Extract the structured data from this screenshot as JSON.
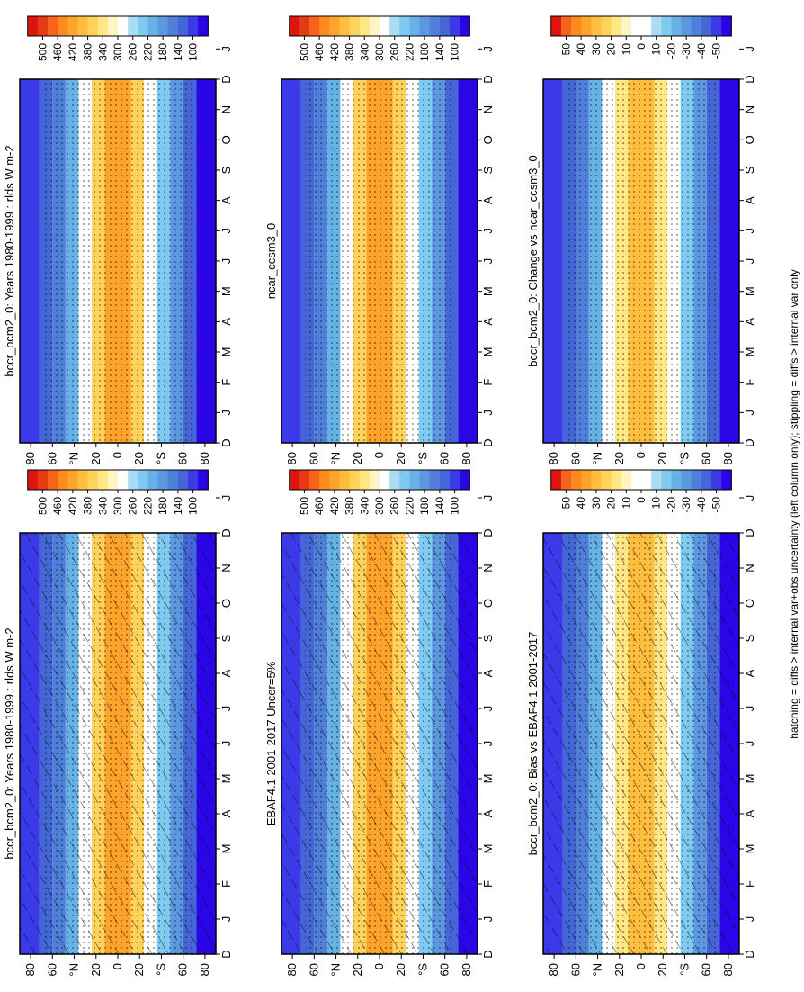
{
  "figure": {
    "caption": "hatching = diffs > internal var+obs uncertainty (left column only); stippling = diffs > internal var only",
    "variable": "rlds",
    "units": "W m-2"
  },
  "colors": {
    "abs": [
      "#2a06e6",
      "#3a3ae8",
      "#4466d6",
      "#4f7fd8",
      "#5b98df",
      "#66b1e6",
      "#7ecaf0",
      "#aadcf5",
      "#ffffff",
      "#fff5c2",
      "#ffe785",
      "#ffd25c",
      "#ffbe3d",
      "#ffa42a",
      "#ff8a20",
      "#f8631c",
      "#e63a14",
      "#e0140f"
    ],
    "diff": [
      "#2a06e6",
      "#3a3ae8",
      "#4466d6",
      "#4f7fd8",
      "#5b98df",
      "#66b1e6",
      "#7ecaf0",
      "#aadcf5",
      "#ffffff",
      "#ffffff",
      "#fff5c2",
      "#ffe785",
      "#ffd25c",
      "#ffbe3d",
      "#ffa42a",
      "#ff8a20",
      "#f8631c",
      "#e0140f"
    ]
  },
  "chart_data": [
    {
      "id": "p1",
      "type": "heatmap",
      "title": "bccr_bcm2_0: Years 1980-1999 : rlds W m-2",
      "x_ticks": [
        "D",
        "J",
        "F",
        "M",
        "A",
        "M",
        "J",
        "J",
        "A",
        "S",
        "O",
        "N",
        "D",
        "J"
      ],
      "y_ticks": [
        "80",
        "60",
        "°N",
        "20",
        "0",
        "20",
        "°S",
        "60",
        "80"
      ],
      "ylim": [
        -90,
        90
      ],
      "colorbar_labels": [
        "500",
        "460",
        "420",
        "380",
        "340",
        "300",
        "260",
        "220",
        "180",
        "140",
        "100"
      ],
      "hatched": true,
      "stippled": true
    },
    {
      "id": "p2",
      "type": "heatmap",
      "title": "bccr_bcm2_0: Years 1980-1999 : rlds W m-2",
      "x_ticks": [
        "D",
        "J",
        "F",
        "M",
        "A",
        "M",
        "J",
        "J",
        "A",
        "S",
        "O",
        "N",
        "D",
        "J"
      ],
      "y_ticks": [
        "80",
        "60",
        "°N",
        "20",
        "0",
        "20",
        "°S",
        "60",
        "80"
      ],
      "ylim": [
        -90,
        90
      ],
      "colorbar_labels": [
        "500",
        "460",
        "420",
        "380",
        "340",
        "300",
        "260",
        "220",
        "180",
        "140",
        "100"
      ],
      "hatched": false,
      "stippled": true
    },
    {
      "id": "p3",
      "type": "heatmap",
      "title": "EBAF4.1 2001-2017 Uncer=5%",
      "x_ticks": [
        "D",
        "J",
        "F",
        "M",
        "A",
        "M",
        "J",
        "J",
        "A",
        "S",
        "O",
        "N",
        "D",
        "J"
      ],
      "y_ticks": [
        "80",
        "60",
        "°N",
        "20",
        "0",
        "20",
        "°S",
        "60",
        "80"
      ],
      "ylim": [
        -90,
        90
      ],
      "colorbar_labels": [
        "500",
        "460",
        "420",
        "380",
        "340",
        "300",
        "260",
        "220",
        "180",
        "140",
        "100"
      ],
      "hatched": true,
      "stippled": true
    },
    {
      "id": "p4",
      "type": "heatmap",
      "title": "ncar_ccsm3_0",
      "x_ticks": [
        "D",
        "J",
        "F",
        "M",
        "A",
        "M",
        "J",
        "J",
        "A",
        "S",
        "O",
        "N",
        "D",
        "J"
      ],
      "y_ticks": [
        "80",
        "60",
        "°N",
        "20",
        "0",
        "20",
        "°S",
        "60",
        "80"
      ],
      "ylim": [
        -90,
        90
      ],
      "colorbar_labels": [
        "500",
        "460",
        "420",
        "380",
        "340",
        "300",
        "260",
        "220",
        "180",
        "140",
        "100"
      ],
      "hatched": false,
      "stippled": true
    },
    {
      "id": "p5",
      "type": "heatmap",
      "title": "bccr_bcm2_0: Bias vs EBAF4.1 2001-2017",
      "x_ticks": [
        "D",
        "J",
        "F",
        "M",
        "A",
        "M",
        "J",
        "J",
        "A",
        "S",
        "O",
        "N",
        "D",
        "J"
      ],
      "y_ticks": [
        "80",
        "60",
        "°N",
        "20",
        "0",
        "20",
        "°S",
        "60",
        "80"
      ],
      "ylim": [
        -90,
        90
      ],
      "colorbar_labels": [
        "50",
        "40",
        "30",
        "20",
        "10",
        "0",
        "-10",
        "-20",
        "-30",
        "-40",
        "-50"
      ],
      "hatched": true,
      "stippled": true
    },
    {
      "id": "p6",
      "type": "heatmap",
      "title": "bccr_bcm2_0: Change vs ncar_ccsm3_0",
      "x_ticks": [
        "D",
        "J",
        "F",
        "M",
        "A",
        "M",
        "J",
        "J",
        "A",
        "S",
        "O",
        "N",
        "D",
        "J"
      ],
      "y_ticks": [
        "80",
        "60",
        "°N",
        "20",
        "0",
        "20",
        "°S",
        "60",
        "80"
      ],
      "ylim": [
        -90,
        90
      ],
      "colorbar_labels": [
        "50",
        "40",
        "30",
        "20",
        "10",
        "0",
        "-10",
        "-20",
        "-30",
        "-40",
        "-50"
      ],
      "hatched": false,
      "stippled": true
    }
  ]
}
